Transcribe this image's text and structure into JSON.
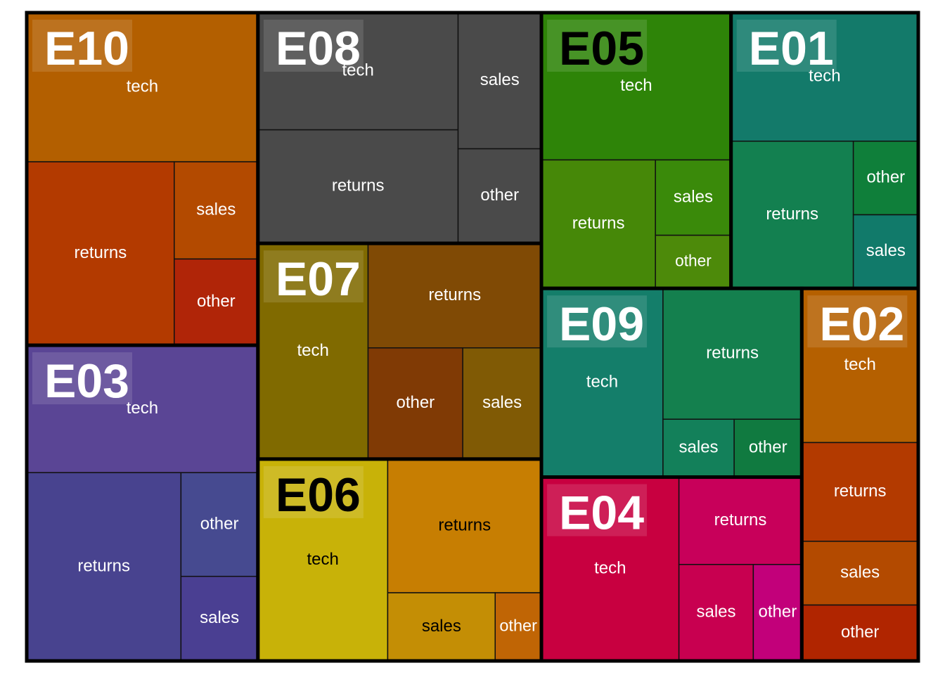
{
  "chart_data": {
    "type": "treemap",
    "groups": [
      {
        "name": "E10",
        "label_color": "#ffffff",
        "children": [
          {
            "name": "tech",
            "color": "#b35f00",
            "value": 678
          },
          {
            "name": "returns",
            "color": "#b33a00",
            "value": 532
          },
          {
            "name": "sales",
            "color": "#b34a00",
            "value": 160
          },
          {
            "name": "other",
            "color": "#b02508",
            "value": 142
          }
        ]
      },
      {
        "name": "E03",
        "label_color": "#ffffff",
        "children": [
          {
            "name": "tech",
            "color": "#5a4595",
            "value": 579
          },
          {
            "name": "returns",
            "color": "#48438f",
            "value": 571
          },
          {
            "name": "other",
            "color": "#464a90",
            "value": 157
          },
          {
            "name": "sales",
            "color": "#4a3f92",
            "value": 128
          }
        ]
      },
      {
        "name": "E08",
        "label_color": "#ffffff",
        "children": [
          {
            "name": "tech",
            "color": "#4a4a4a",
            "value": 461
          },
          {
            "name": "returns",
            "color": "#4a4a4a",
            "value": 447
          },
          {
            "name": "sales",
            "color": "#4a4a4a",
            "value": 223
          },
          {
            "name": "other",
            "color": "#4a4a4a",
            "value": 155
          }
        ]
      },
      {
        "name": "E07",
        "label_color": "#ffffff",
        "children": [
          {
            "name": "tech",
            "color": "#806a00",
            "value": 467
          },
          {
            "name": "returns",
            "color": "#804a05",
            "value": 356
          },
          {
            "name": "other",
            "color": "#803a05",
            "value": 207
          },
          {
            "name": "sales",
            "color": "#805a05",
            "value": 172
          }
        ]
      },
      {
        "name": "E06",
        "label_color": "#000000",
        "children": [
          {
            "name": "tech",
            "color": "#c8b208",
            "value": 515
          },
          {
            "name": "returns",
            "color": "#c77e02",
            "value": 404
          },
          {
            "name": "sales",
            "color": "#c48e05",
            "value": 144
          },
          {
            "name": "other",
            "color": "#c06505",
            "value": 62
          }
        ]
      },
      {
        "name": "E05",
        "label_color": "#000000",
        "children": [
          {
            "name": "tech",
            "color": "#2e8408",
            "value": 549
          },
          {
            "name": "returns",
            "color": "#468808",
            "value": 288
          },
          {
            "name": "sales",
            "color": "#3a8a0a",
            "value": 112
          },
          {
            "name": "other",
            "color": "#4d8a0a",
            "value": 79
          }
        ]
      },
      {
        "name": "E01",
        "label_color": "#ffffff",
        "children": [
          {
            "name": "tech",
            "color": "#137a6a",
            "value": 473
          },
          {
            "name": "returns",
            "color": "#138050",
            "value": 354
          },
          {
            "name": "other",
            "color": "#0f7f3a",
            "value": 94
          },
          {
            "name": "sales",
            "color": "#117a6a",
            "value": 94
          }
        ]
      },
      {
        "name": "E09",
        "label_color": "#ffffff",
        "children": [
          {
            "name": "tech",
            "color": "#147e6a",
            "value": 451
          },
          {
            "name": "returns",
            "color": "#14804e",
            "value": 357
          },
          {
            "name": "sales",
            "color": "#13805a",
            "value": 81
          },
          {
            "name": "other",
            "color": "#107a40",
            "value": 77
          }
        ]
      },
      {
        "name": "E04",
        "label_color": "#ffffff",
        "children": [
          {
            "name": "tech",
            "color": "#c80040",
            "value": 497
          },
          {
            "name": "returns",
            "color": "#c8005a",
            "value": 211
          },
          {
            "name": "sales",
            "color": "#c80050",
            "value": 141
          },
          {
            "name": "other",
            "color": "#c2007a",
            "value": 92
          }
        ]
      },
      {
        "name": "E02",
        "label_color": "#ffffff",
        "children": [
          {
            "name": "tech",
            "color": "#b56000",
            "value": 353
          },
          {
            "name": "returns",
            "color": "#b33a00",
            "value": 226
          },
          {
            "name": "sales",
            "color": "#b34a00",
            "value": 146
          },
          {
            "name": "other",
            "color": "#b02500",
            "value": 128
          }
        ]
      }
    ]
  }
}
